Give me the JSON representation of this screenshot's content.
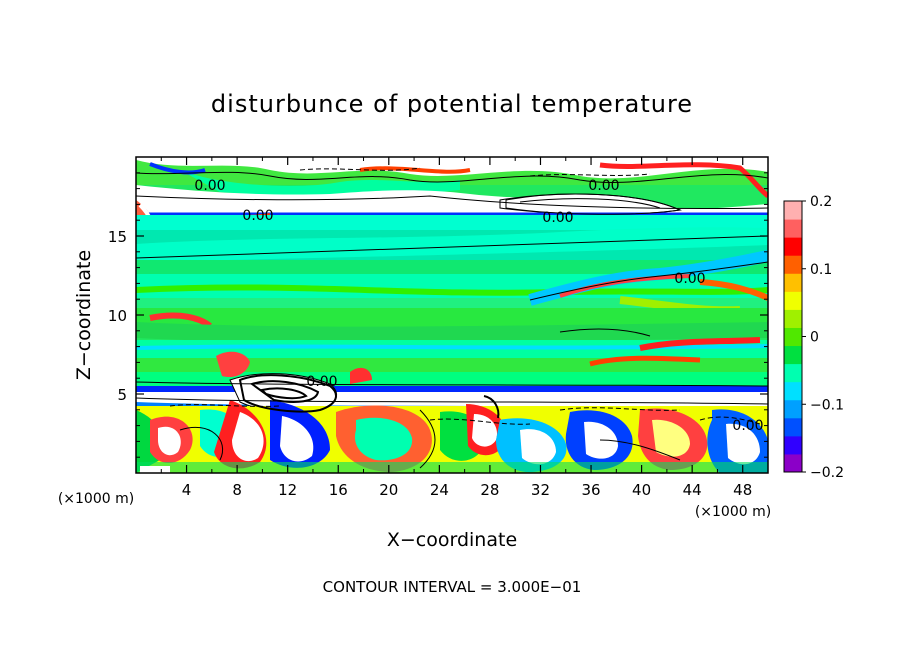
{
  "chart_data": {
    "type": "heatmap",
    "title": "disturbunce of potential temperature",
    "xlabel": "X−coordinate",
    "ylabel": "Z−coordinate",
    "x_unit_left": "(×1000 m)",
    "x_unit_right": "(×1000 m)",
    "footer": "CONTOUR INTERVAL = 3.000E−01",
    "xlim": [
      0,
      50
    ],
    "ylim": [
      0,
      20
    ],
    "x_ticks": [
      4,
      8,
      12,
      16,
      20,
      24,
      28,
      32,
      36,
      40,
      44,
      48
    ],
    "y_ticks": [
      5,
      10,
      15
    ],
    "contour_labels": [
      "0.00",
      "0.00",
      "0.00",
      "0.00",
      "0.00",
      "0.00",
      "0.00"
    ],
    "colorbar": {
      "min": -0.2,
      "max": 0.2,
      "ticks": [
        0.2,
        0.1,
        0,
        -0.1,
        -0.2
      ],
      "tick_labels": [
        "0.2",
        "0.1",
        "0",
        "−0.1",
        "−0.2"
      ],
      "colors": [
        "#8b00c8",
        "#3000ff",
        "#0050ff",
        "#00a0ff",
        "#00e0ff",
        "#00ffb0",
        "#00e040",
        "#50e800",
        "#a0f000",
        "#f0ff00",
        "#ffc000",
        "#ff6000",
        "#ff0000",
        "#ff6060",
        "#ffb0b0"
      ]
    },
    "layers": [
      {
        "z_range": [
          18,
          20
        ],
        "dominant": "mixed, white/negative"
      },
      {
        "z_range": [
          16.5,
          18
        ],
        "dominant": "white band (contour 0.00)"
      },
      {
        "z_range": [
          10,
          16.5
        ],
        "dominant": "cyan/green near 0"
      },
      {
        "z_range": [
          5.5,
          10
        ],
        "dominant": "green with red/blue streaks"
      },
      {
        "z_range": [
          5,
          5.5
        ],
        "dominant": "blue/white band"
      },
      {
        "z_range": [
          0,
          5
        ],
        "dominant": "blobs, white/blue/red/yellow"
      }
    ]
  }
}
